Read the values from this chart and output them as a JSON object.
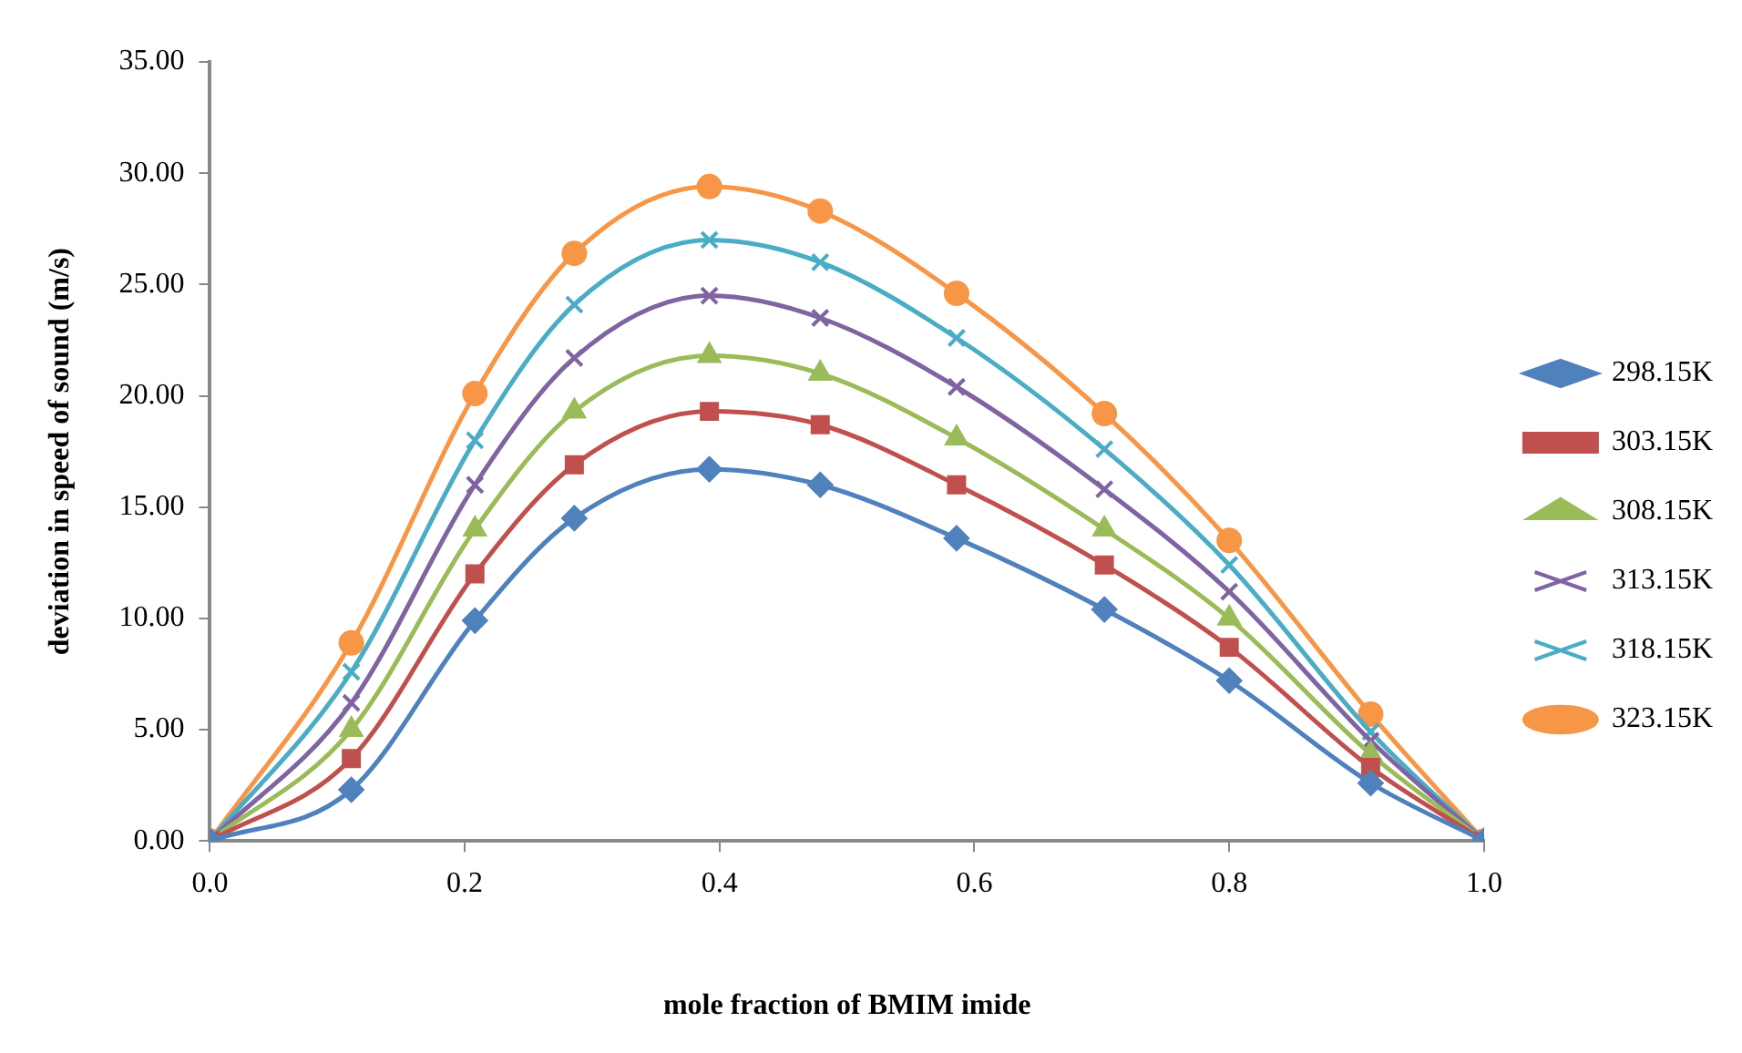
{
  "chart_data": {
    "type": "line",
    "xlabel": "mole fraction of BMIM imide",
    "ylabel": "deviation in speed of sound (m/s)",
    "x": [
      0,
      0.111,
      0.208,
      0.286,
      0.392,
      0.479,
      0.586,
      0.702,
      0.8,
      0.911,
      1.0
    ],
    "xlim": [
      0,
      1
    ],
    "xticks": [
      {
        "value": 0,
        "label": "0.0"
      },
      {
        "value": 0.2,
        "label": "0.2"
      },
      {
        "value": 0.4,
        "label": "0.4"
      },
      {
        "value": 0.6,
        "label": "0.6"
      },
      {
        "value": 0.8,
        "label": "0.8"
      },
      {
        "value": 1,
        "label": "1.0"
      }
    ],
    "ylim": [
      0,
      35
    ],
    "yticks": [
      {
        "value": 0,
        "label": "0.00"
      },
      {
        "value": 5,
        "label": "5.00"
      },
      {
        "value": 10,
        "label": "10.00"
      },
      {
        "value": 15,
        "label": "15.00"
      },
      {
        "value": 20,
        "label": "20.00"
      },
      {
        "value": 25,
        "label": "25.00"
      },
      {
        "value": 30,
        "label": "30.00"
      },
      {
        "value": 35,
        "label": "35.00"
      }
    ],
    "grid": false,
    "legend": "right",
    "line_style": "solid",
    "series": [
      {
        "name": "298.15K",
        "color": "#4f81bd",
        "marker": "diamond",
        "values": [
          0,
          2.3,
          9.9,
          14.5,
          16.7,
          16.0,
          13.6,
          10.4,
          7.2,
          2.6,
          0
        ]
      },
      {
        "name": "303.15K",
        "color": "#c0504d",
        "marker": "square",
        "values": [
          0,
          3.7,
          12.0,
          16.9,
          19.3,
          18.7,
          16.0,
          12.4,
          8.7,
          3.3,
          0
        ]
      },
      {
        "name": "308.15K",
        "color": "#9bbb59",
        "marker": "triangle",
        "values": [
          0,
          5.0,
          14.0,
          19.3,
          21.8,
          21.0,
          18.1,
          14.0,
          10.0,
          3.9,
          0
        ]
      },
      {
        "name": "313.15K",
        "color": "#8064a2",
        "marker": "cross",
        "values": [
          0,
          6.2,
          16.0,
          21.7,
          24.5,
          23.5,
          20.4,
          15.8,
          11.2,
          4.5,
          0
        ]
      },
      {
        "name": "318.15K",
        "color": "#4bacc6",
        "marker": "cross",
        "values": [
          0,
          7.6,
          18.0,
          24.1,
          27.0,
          26.0,
          22.6,
          17.6,
          12.4,
          4.9,
          0
        ]
      },
      {
        "name": "323.15K",
        "color": "#f79646",
        "marker": "circle",
        "values": [
          0,
          8.9,
          20.1,
          26.4,
          29.4,
          28.3,
          24.6,
          19.2,
          13.5,
          5.7,
          0
        ]
      }
    ]
  }
}
